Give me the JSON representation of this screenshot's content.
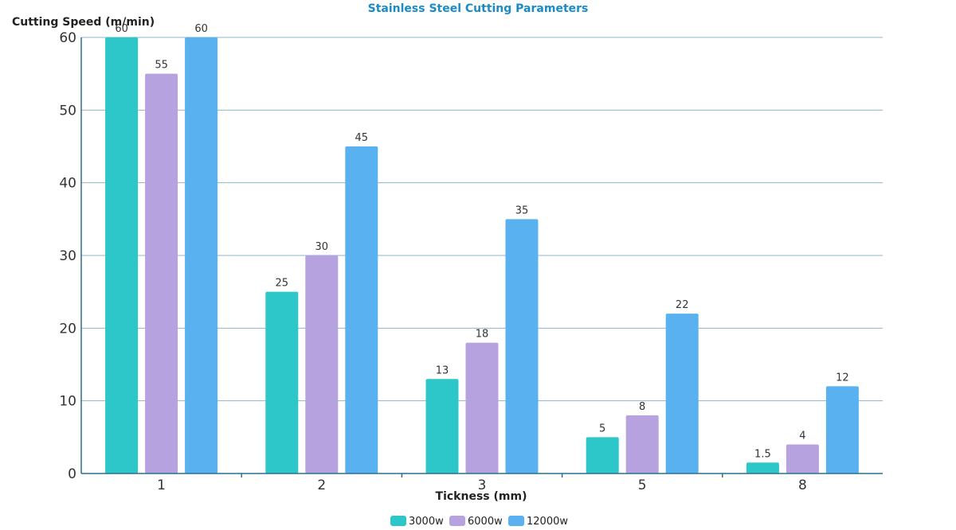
{
  "chart_data": {
    "type": "bar",
    "title": "Stainless Steel Cutting Parameters",
    "xlabel": "Tickness (mm)",
    "ylabel": "Cutting Speed (m/min)",
    "categories": [
      "1",
      "2",
      "3",
      "5",
      "8"
    ],
    "series": [
      {
        "name": "3000w",
        "color": "#2ec7c9",
        "values": [
          60,
          25,
          13,
          5,
          1.5
        ]
      },
      {
        "name": "6000w",
        "color": "#b6a2de",
        "values": [
          55,
          30,
          18,
          8,
          4
        ]
      },
      {
        "name": "12000w",
        "color": "#5ab1ef",
        "values": [
          60,
          45,
          35,
          22,
          12
        ]
      }
    ],
    "ylim": [
      0,
      60
    ],
    "yticks": [
      0,
      10,
      20,
      30,
      40,
      50,
      60
    ],
    "grid": true,
    "legend_position": "bottom-center"
  }
}
